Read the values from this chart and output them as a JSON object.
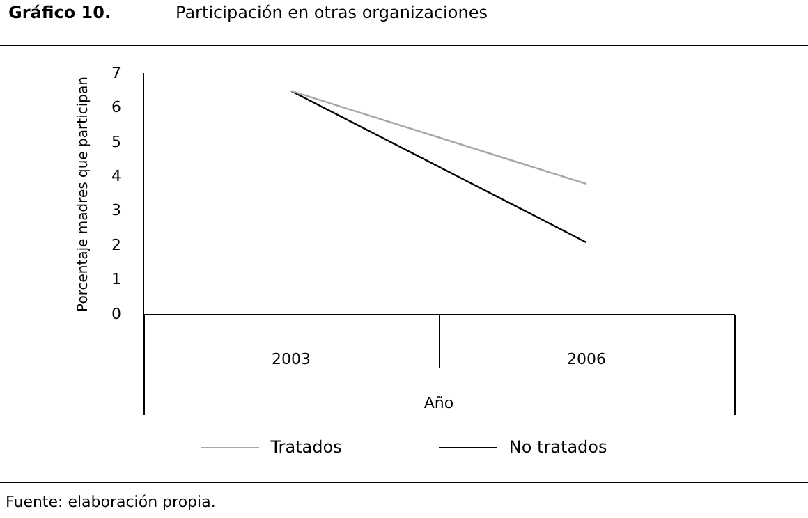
{
  "chart_data": {
    "type": "line",
    "title": "Gráfico 10.",
    "subtitle": "Participación en otras organizaciones",
    "xlabel": "Año",
    "ylabel": "Porcentaje madres que participan",
    "categories": [
      "2003",
      "2006"
    ],
    "series": [
      {
        "name": "Tratados",
        "color": "#a6a6a6",
        "values": [
          6.5,
          3.8
        ]
      },
      {
        "name": "No tratados",
        "color": "#000000",
        "values": [
          6.5,
          2.1
        ]
      }
    ],
    "ylim": [
      0,
      7
    ],
    "yticks": [
      0,
      1,
      2,
      3,
      4,
      5,
      6,
      7
    ],
    "grid": false,
    "legend": "bottom",
    "marker": "none",
    "line_style": "solid",
    "annotations": [
      "Fuente: elaboración propia."
    ]
  }
}
